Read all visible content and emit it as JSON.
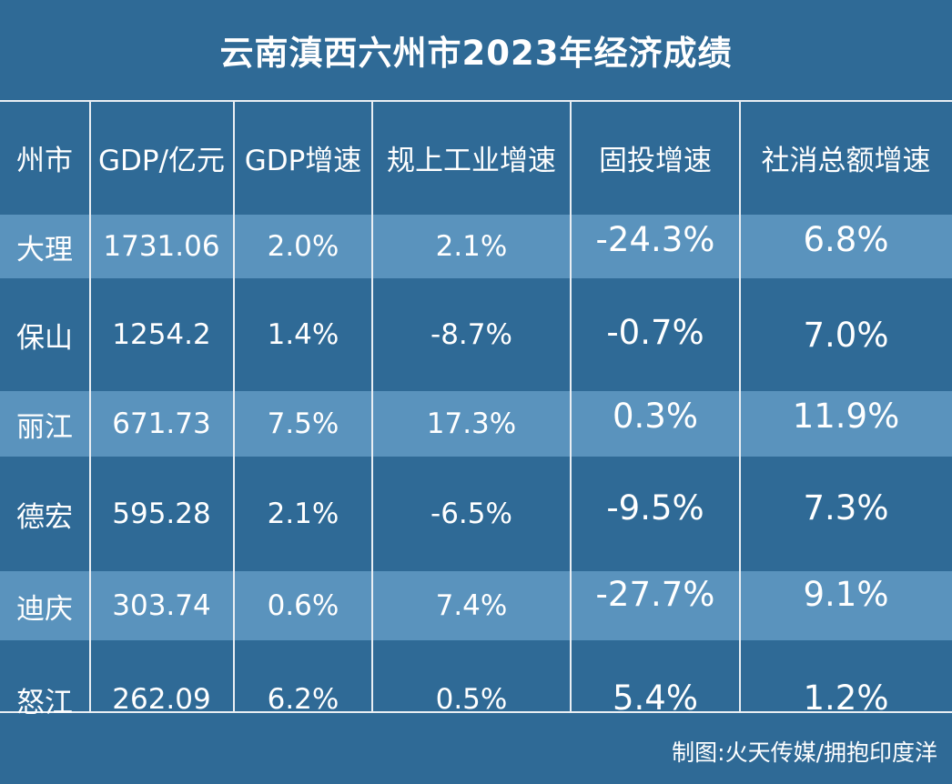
{
  "chart_data": {
    "type": "table",
    "title": "云南滇西六州市2023年经济成绩",
    "columns": [
      "州市",
      "GDP/亿元",
      "GDP增速",
      "规上工业增速",
      "固投增速",
      "社消总额增速"
    ],
    "rows": [
      [
        "大理",
        "1731.06",
        "2.0%",
        "2.1%",
        "-24.3%",
        "6.8%"
      ],
      [
        "保山",
        "1254.2",
        "1.4%",
        "-8.7%",
        "-0.7%",
        "7.0%"
      ],
      [
        "丽江",
        "671.73",
        "7.5%",
        "17.3%",
        "0.3%",
        "11.9%"
      ],
      [
        "德宏",
        "595.28",
        "2.1%",
        "-6.5%",
        "-9.5%",
        "7.3%"
      ],
      [
        "迪庆",
        "303.74",
        "0.6%",
        "7.4%",
        "-27.7%",
        "9.1%"
      ],
      [
        "怒江",
        "262.09",
        "6.2%",
        "0.5%",
        "5.4%",
        "1.2%"
      ]
    ],
    "source": "制图:火天传媒/拥抱印度洋"
  }
}
